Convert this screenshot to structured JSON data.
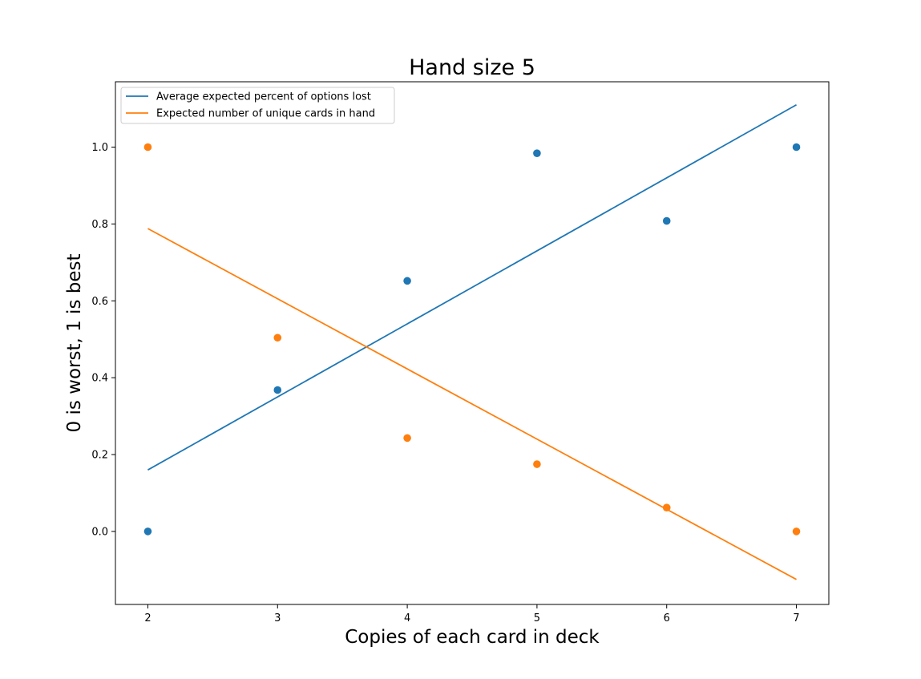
{
  "chart_data": {
    "type": "scatter",
    "title": "Hand size 5",
    "xlabel": "Copies of each card in deck",
    "ylabel": "0 is worst, 1 is best",
    "xlim": [
      1.75,
      7.25
    ],
    "ylim": [
      -0.19,
      1.17
    ],
    "x_ticks": [
      2,
      3,
      4,
      5,
      6,
      7
    ],
    "y_ticks": [
      0.0,
      0.2,
      0.4,
      0.6,
      0.8,
      1.0
    ],
    "x_tick_labels": [
      "2",
      "3",
      "4",
      "5",
      "6",
      "7"
    ],
    "y_tick_labels": [
      "0.0",
      "0.2",
      "0.4",
      "0.6",
      "0.8",
      "1.0"
    ],
    "grid": false,
    "legend_position": "top-left",
    "x": [
      2,
      3,
      4,
      5,
      6,
      7
    ],
    "series": [
      {
        "name": "Average expected percent of options lost",
        "color": "#1f77b4",
        "values": [
          0.0,
          0.368,
          0.652,
          0.984,
          0.808,
          1.0
        ],
        "trend_line": {
          "x": [
            2,
            7
          ],
          "y": [
            0.16,
            1.11
          ]
        }
      },
      {
        "name": "Expected number of unique cards in hand",
        "color": "#ff7f0e",
        "values": [
          1.0,
          0.504,
          0.243,
          0.175,
          0.062,
          0.0
        ],
        "trend_line": {
          "x": [
            2,
            7
          ],
          "y": [
            0.788,
            -0.125
          ]
        }
      }
    ]
  }
}
